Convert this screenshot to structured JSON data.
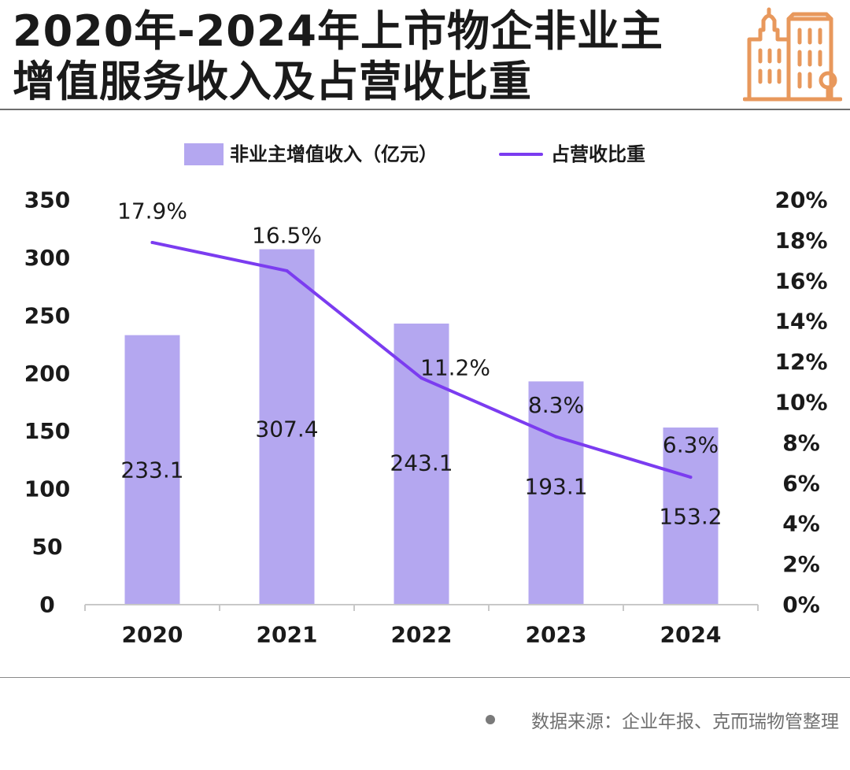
{
  "header": {
    "title_line1": "2020年-2024年上市物企非业主",
    "title_line2": "增值服务收入及占营收比重"
  },
  "logo": {
    "icon": "building-icon",
    "color": "#E8985C"
  },
  "footer": {
    "source": "数据来源：企业年报、克而瑞物管整理"
  },
  "chart_data": {
    "type": "bar",
    "categories": [
      "2020",
      "2021",
      "2022",
      "2023",
      "2024"
    ],
    "series": [
      {
        "name": "非业主增值收入（亿元）",
        "type": "bar",
        "axis": "left",
        "color": "#B4A7F0",
        "values": [
          233.1,
          307.4,
          243.1,
          193.1,
          153.2
        ],
        "labels": [
          "233.1",
          "307.4",
          "243.1",
          "193.1",
          "153.2"
        ]
      },
      {
        "name": "占营收比重",
        "type": "line",
        "axis": "right",
        "color": "#7B3CF0",
        "values": [
          17.9,
          16.5,
          11.2,
          8.3,
          6.3
        ],
        "labels": [
          "17.9%",
          "16.5%",
          "11.2%",
          "8.3%",
          "6.3%"
        ]
      }
    ],
    "left_axis": {
      "range": [
        0,
        350
      ],
      "ticks": [
        "0",
        "50",
        "100",
        "150",
        "200",
        "250",
        "300",
        "350"
      ]
    },
    "right_axis": {
      "range": [
        0,
        20
      ],
      "ticks": [
        "0%",
        "2%",
        "4%",
        "6%",
        "8%",
        "10%",
        "12%",
        "14%",
        "16%",
        "18%",
        "20%"
      ]
    },
    "grid": false,
    "legend_position": "top"
  }
}
